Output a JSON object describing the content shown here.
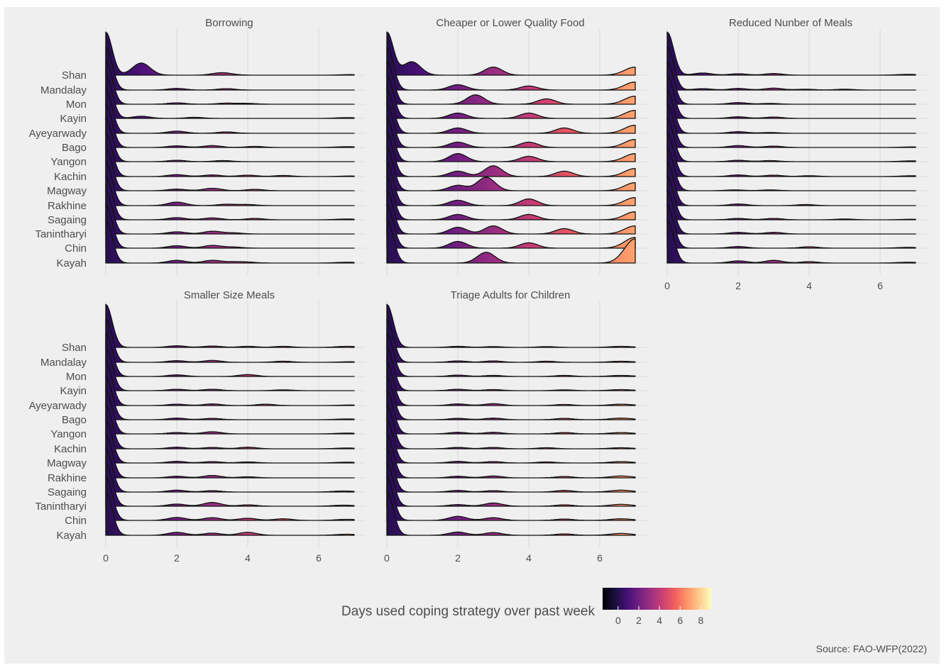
{
  "chart_data": {
    "type": "ridgeline",
    "x_ticks": [
      0,
      2,
      4,
      6
    ],
    "xlim": [
      0,
      7
    ],
    "regions": [
      "Shan",
      "Mandalay",
      "Mon",
      "Kayin",
      "Ayeyarwady",
      "Bago",
      "Yangon",
      "Kachin",
      "Magway",
      "Rakhine",
      "Sagaing",
      "Tanintharyi",
      "Chin",
      "Kayah"
    ],
    "panels": [
      {
        "title": "Borrowing",
        "profiles": {
          "Shan": [
            [
              1.0,
              0.45
            ],
            [
              3.2,
              0.06
            ],
            [
              3.4,
              0.04
            ],
            [
              6.9,
              0.02
            ]
          ],
          "Mandalay": [
            [
              2.0,
              0.06
            ],
            [
              3.4,
              0.05
            ]
          ],
          "Mon": [
            [
              2.0,
              0.05
            ],
            [
              3.4,
              0.04
            ],
            [
              4.0,
              0.03
            ]
          ],
          "Kayin": [
            [
              1.0,
              0.08
            ],
            [
              2.5,
              0.04
            ],
            [
              6.8,
              0.03
            ]
          ],
          "Ayeyarwady": [
            [
              2.0,
              0.08
            ],
            [
              3.4,
              0.05
            ]
          ],
          "Bago": [
            [
              2.0,
              0.06
            ],
            [
              3.0,
              0.07
            ],
            [
              4.2,
              0.04
            ],
            [
              6.8,
              0.03
            ]
          ],
          "Yangon": [
            [
              2.0,
              0.05
            ],
            [
              3.3,
              0.04
            ]
          ],
          "Kachin": [
            [
              2.0,
              0.07
            ],
            [
              3.0,
              0.06
            ],
            [
              4.0,
              0.05
            ],
            [
              5.0,
              0.04
            ],
            [
              6.9,
              0.02
            ]
          ],
          "Magway": [
            [
              2.0,
              0.06
            ],
            [
              3.0,
              0.09
            ],
            [
              4.2,
              0.05
            ]
          ],
          "Rakhine": [
            [
              2.0,
              0.13
            ],
            [
              3.4,
              0.05
            ],
            [
              4.0,
              0.04
            ]
          ],
          "Sagaing": [
            [
              2.0,
              0.08
            ],
            [
              3.0,
              0.07
            ],
            [
              4.2,
              0.05
            ],
            [
              6.8,
              0.03
            ]
          ],
          "Tanintharyi": [
            [
              2.0,
              0.08
            ],
            [
              3.0,
              0.1
            ],
            [
              3.6,
              0.04
            ]
          ],
          "Chin": [
            [
              2.0,
              0.09
            ],
            [
              3.0,
              0.1
            ],
            [
              3.6,
              0.04
            ]
          ],
          "Kayah": [
            [
              2.0,
              0.1
            ],
            [
              3.0,
              0.1
            ],
            [
              3.6,
              0.04
            ],
            [
              4.0,
              0.03
            ],
            [
              6.8,
              0.03
            ]
          ]
        }
      },
      {
        "title": "Cheaper or Lower Quality Food",
        "profiles": {
          "Shan": [
            [
              0.7,
              0.5
            ],
            [
              3.0,
              0.3
            ],
            [
              7.0,
              0.3
            ]
          ],
          "Mandalay": [
            [
              2.0,
              0.2
            ],
            [
              4.0,
              0.15
            ],
            [
              7.0,
              0.3
            ]
          ],
          "Mon": [
            [
              2.5,
              0.35
            ],
            [
              4.5,
              0.2
            ],
            [
              7.0,
              0.3
            ]
          ],
          "Kayin": [
            [
              2.0,
              0.2
            ],
            [
              4.0,
              0.2
            ],
            [
              7.0,
              0.3
            ]
          ],
          "Ayeyarwady": [
            [
              2.0,
              0.2
            ],
            [
              5.0,
              0.2
            ],
            [
              7.0,
              0.3
            ]
          ],
          "Bago": [
            [
              2.0,
              0.2
            ],
            [
              4.0,
              0.2
            ],
            [
              7.0,
              0.3
            ]
          ],
          "Yangon": [
            [
              2.0,
              0.3
            ],
            [
              4.0,
              0.2
            ],
            [
              7.0,
              0.3
            ]
          ],
          "Kachin": [
            [
              2.0,
              0.2
            ],
            [
              3.0,
              0.4
            ],
            [
              5.0,
              0.2
            ],
            [
              7.0,
              0.3
            ]
          ],
          "Magway": [
            [
              2.0,
              0.2
            ],
            [
              2.8,
              0.5
            ],
            [
              7.0,
              0.3
            ]
          ],
          "Rakhine": [
            [
              2.0,
              0.2
            ],
            [
              4.0,
              0.25
            ],
            [
              7.0,
              0.3
            ]
          ],
          "Sagaing": [
            [
              2.0,
              0.2
            ],
            [
              4.0,
              0.2
            ],
            [
              7.0,
              0.3
            ]
          ],
          "Tanintharyi": [
            [
              2.0,
              0.25
            ],
            [
              3.0,
              0.3
            ],
            [
              5.0,
              0.2
            ],
            [
              7.0,
              0.3
            ]
          ],
          "Chin": [
            [
              2.0,
              0.25
            ],
            [
              4.0,
              0.2
            ],
            [
              7.0,
              0.4
            ]
          ],
          "Kayah": [
            [
              2.8,
              0.4
            ],
            [
              7.0,
              0.9
            ]
          ]
        }
      },
      {
        "title": "Reduced Nunber of Meals",
        "profiles": {
          "Shan": [
            [
              1.0,
              0.08
            ],
            [
              2.0,
              0.05
            ],
            [
              3.0,
              0.06
            ],
            [
              6.8,
              0.03
            ]
          ],
          "Mandalay": [
            [
              1.0,
              0.05
            ],
            [
              2.0,
              0.06
            ],
            [
              3.0,
              0.07
            ],
            [
              3.9,
              0.03
            ],
            [
              5.0,
              0.03
            ]
          ],
          "Mon": [
            [
              2.0,
              0.06
            ],
            [
              2.9,
              0.03
            ]
          ],
          "Kayin": [
            [
              2.0,
              0.06
            ],
            [
              3.0,
              0.05
            ]
          ],
          "Ayeyarwady": [
            [
              2.0,
              0.06
            ],
            [
              2.9,
              0.03
            ]
          ],
          "Bago": [
            [
              2.0,
              0.07
            ],
            [
              3.0,
              0.05
            ],
            [
              6.9,
              0.02
            ]
          ],
          "Yangon": [
            [
              2.0,
              0.05
            ],
            [
              2.9,
              0.04
            ],
            [
              6.9,
              0.03
            ]
          ],
          "Kachin": [
            [
              2.0,
              0.06
            ],
            [
              3.0,
              0.05
            ],
            [
              4.0,
              0.03
            ],
            [
              6.9,
              0.03
            ]
          ],
          "Magway": [
            [
              1.9,
              0.03
            ],
            [
              2.9,
              0.03
            ]
          ],
          "Rakhine": [
            [
              2.0,
              0.06
            ],
            [
              3.9,
              0.04
            ]
          ],
          "Sagaing": [
            [
              2.0,
              0.05
            ],
            [
              3.0,
              0.05
            ],
            [
              5.0,
              0.03
            ],
            [
              6.9,
              0.02
            ]
          ],
          "Tanintharyi": [
            [
              2.0,
              0.06
            ],
            [
              3.0,
              0.06
            ]
          ],
          "Chin": [
            [
              2.0,
              0.06
            ],
            [
              4.0,
              0.05
            ],
            [
              6.8,
              0.03
            ]
          ],
          "Kayah": [
            [
              2.0,
              0.08
            ],
            [
              3.0,
              0.1
            ],
            [
              4.0,
              0.05
            ],
            [
              6.8,
              0.03
            ]
          ]
        }
      },
      {
        "title": "Smaller Size Meals",
        "profiles": {
          "Shan": [
            [
              2.0,
              0.06
            ],
            [
              3.0,
              0.05
            ],
            [
              4.0,
              0.04
            ],
            [
              5.0,
              0.04
            ],
            [
              6.8,
              0.04
            ]
          ],
          "Mandalay": [
            [
              2.0,
              0.06
            ],
            [
              3.0,
              0.07
            ],
            [
              5.0,
              0.04
            ],
            [
              6.9,
              0.02
            ]
          ],
          "Mon": [
            [
              2.0,
              0.06
            ],
            [
              4.0,
              0.07
            ]
          ],
          "Kayin": [
            [
              2.0,
              0.05
            ],
            [
              3.0,
              0.05
            ],
            [
              5.0,
              0.03
            ]
          ],
          "Ayeyarwady": [
            [
              2.0,
              0.05
            ],
            [
              3.0,
              0.06
            ],
            [
              4.5,
              0.05
            ],
            [
              6.9,
              0.02
            ]
          ],
          "Bago": [
            [
              2.0,
              0.06
            ],
            [
              3.0,
              0.05
            ],
            [
              6.8,
              0.03
            ]
          ],
          "Yangon": [
            [
              2.0,
              0.05
            ],
            [
              3.0,
              0.08
            ],
            [
              6.8,
              0.03
            ]
          ],
          "Kachin": [
            [
              2.0,
              0.06
            ],
            [
              3.0,
              0.05
            ],
            [
              4.0,
              0.06
            ],
            [
              6.8,
              0.03
            ]
          ],
          "Magway": [
            [
              2.0,
              0.06
            ],
            [
              3.0,
              0.05
            ],
            [
              4.0,
              0.04
            ],
            [
              6.8,
              0.03
            ]
          ],
          "Rakhine": [
            [
              2.0,
              0.06
            ],
            [
              3.0,
              0.09
            ],
            [
              4.0,
              0.04
            ]
          ],
          "Sagaing": [
            [
              2.0,
              0.07
            ],
            [
              3.0,
              0.05
            ],
            [
              6.7,
              0.04
            ]
          ],
          "Tanintharyi": [
            [
              2.0,
              0.08
            ],
            [
              3.0,
              0.14
            ],
            [
              4.0,
              0.05
            ],
            [
              6.7,
              0.04
            ]
          ],
          "Chin": [
            [
              2.0,
              0.11
            ],
            [
              3.0,
              0.1
            ],
            [
              4.0,
              0.08
            ],
            [
              5.0,
              0.06
            ],
            [
              6.8,
              0.04
            ]
          ],
          "Kayah": [
            [
              2.0,
              0.11
            ],
            [
              3.0,
              0.08
            ],
            [
              4.0,
              0.11
            ],
            [
              6.8,
              0.04
            ]
          ]
        }
      },
      {
        "title": "Triage Adults for Children",
        "profiles": {
          "Shan": [
            [
              2.0,
              0.04
            ],
            [
              3.0,
              0.03
            ],
            [
              4.5,
              0.03
            ],
            [
              6.6,
              0.04
            ]
          ],
          "Mandalay": [
            [
              2.0,
              0.05
            ],
            [
              3.0,
              0.05
            ],
            [
              4.5,
              0.04
            ],
            [
              6.6,
              0.04
            ]
          ],
          "Mon": [
            [
              2.0,
              0.05
            ],
            [
              3.0,
              0.04
            ],
            [
              5.0,
              0.04
            ],
            [
              6.6,
              0.04
            ]
          ],
          "Kayin": [
            [
              2.0,
              0.05
            ],
            [
              3.0,
              0.04
            ],
            [
              5.0,
              0.03
            ],
            [
              6.6,
              0.04
            ]
          ],
          "Ayeyarwady": [
            [
              2.0,
              0.06
            ],
            [
              3.0,
              0.07
            ],
            [
              5.0,
              0.04
            ],
            [
              6.6,
              0.05
            ]
          ],
          "Bago": [
            [
              2.0,
              0.05
            ],
            [
              3.0,
              0.06
            ],
            [
              5.0,
              0.05
            ],
            [
              6.6,
              0.06
            ]
          ],
          "Yangon": [
            [
              2.0,
              0.06
            ],
            [
              3.0,
              0.06
            ],
            [
              5.0,
              0.05
            ],
            [
              6.6,
              0.05
            ]
          ],
          "Kachin": [
            [
              2.0,
              0.05
            ],
            [
              3.0,
              0.05
            ],
            [
              4.5,
              0.04
            ],
            [
              6.6,
              0.04
            ]
          ],
          "Magway": [
            [
              2.0,
              0.06
            ],
            [
              3.0,
              0.05
            ],
            [
              4.5,
              0.04
            ],
            [
              6.6,
              0.05
            ]
          ],
          "Rakhine": [
            [
              2.0,
              0.06
            ],
            [
              3.0,
              0.07
            ],
            [
              5.0,
              0.05
            ],
            [
              6.6,
              0.07
            ]
          ],
          "Sagaing": [
            [
              2.0,
              0.06
            ],
            [
              3.0,
              0.05
            ],
            [
              5.0,
              0.06
            ],
            [
              6.6,
              0.07
            ]
          ],
          "Tanintharyi": [
            [
              2.0,
              0.06
            ],
            [
              3.0,
              0.12
            ],
            [
              5.0,
              0.05
            ],
            [
              6.6,
              0.07
            ]
          ],
          "Chin": [
            [
              2.0,
              0.15
            ],
            [
              3.0,
              0.1
            ],
            [
              5.0,
              0.05
            ],
            [
              6.6,
              0.06
            ]
          ],
          "Kayah": [
            [
              2.0,
              0.12
            ],
            [
              3.0,
              0.1
            ],
            [
              5.0,
              0.05
            ],
            [
              6.6,
              0.07
            ]
          ]
        }
      }
    ],
    "legend": {
      "title": "Days used coping strategy over past week",
      "ticks": [
        0,
        2,
        4,
        6,
        8
      ],
      "range": [
        -1.5,
        9
      ],
      "placement": "bottom"
    },
    "caption": "Source: FAO-WFP(2022)",
    "colors": {
      "background": "#efefef",
      "grid": "#dedede",
      "text": "#4d4d4d",
      "magma": [
        "#000004",
        "#180f3d",
        "#440f76",
        "#721f81",
        "#9e2f7f",
        "#cd4071",
        "#f1605d",
        "#fd9668",
        "#feca8d",
        "#fcfdbf"
      ]
    }
  }
}
